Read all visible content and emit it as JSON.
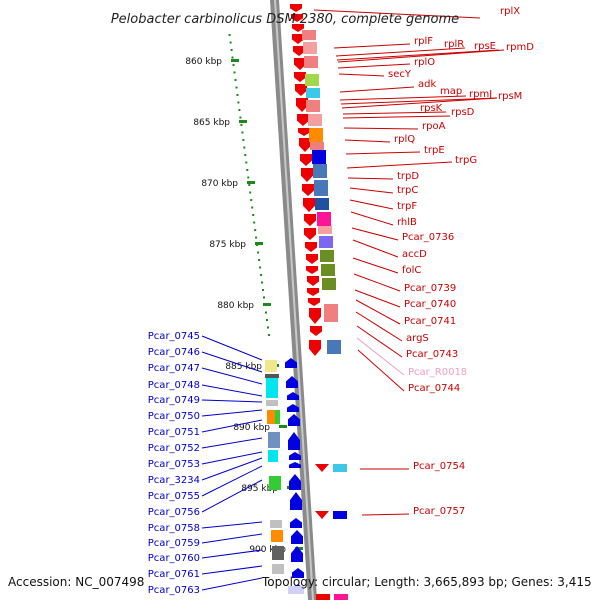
{
  "title": "Pelobacter carbinolicus DSM 2380, complete genome",
  "footer": {
    "accession": "Accession: NC_007498",
    "topology": "Topology: circular; Length: 3,665,893 bp; Genes: 3,415"
  },
  "colors": {
    "right_label": "#cc0000",
    "left_label": "#0000cc",
    "rna_label": "#f0a0c0",
    "ruler_dot": "#1a8a1a"
  },
  "ruler": [
    {
      "label": "860 kbp"
    },
    {
      "label": "865 kbp"
    },
    {
      "label": "870 kbp"
    },
    {
      "label": "875 kbp"
    },
    {
      "label": "880 kbp"
    },
    {
      "label": "885 kbp"
    },
    {
      "label": "890 kbp"
    },
    {
      "label": "895 kbp"
    },
    {
      "label": "900 kbp"
    }
  ],
  "right_genes": [
    {
      "name": "rplX",
      "color": "red"
    },
    {
      "name": "rplF",
      "color": "red"
    },
    {
      "name": "rplR",
      "color": "red"
    },
    {
      "name": "rpsE",
      "color": "red"
    },
    {
      "name": "rpmD",
      "color": "red"
    },
    {
      "name": "rplO",
      "color": "red"
    },
    {
      "name": "secY",
      "color": "red"
    },
    {
      "name": "adk",
      "color": "red"
    },
    {
      "name": "map",
      "color": "red"
    },
    {
      "name": "rpmJ",
      "color": "red"
    },
    {
      "name": "rpsM",
      "color": "red"
    },
    {
      "name": "rpsK",
      "color": "red"
    },
    {
      "name": "rpsD",
      "color": "red"
    },
    {
      "name": "rpoA",
      "color": "red"
    },
    {
      "name": "rplQ",
      "color": "red"
    },
    {
      "name": "trpE",
      "color": "red"
    },
    {
      "name": "trpG",
      "color": "red"
    },
    {
      "name": "trpD",
      "color": "red"
    },
    {
      "name": "trpC",
      "color": "red"
    },
    {
      "name": "trpF",
      "color": "red"
    },
    {
      "name": "rhlB",
      "color": "red"
    },
    {
      "name": "Pcar_0736",
      "color": "red"
    },
    {
      "name": "accD",
      "color": "red"
    },
    {
      "name": "folC",
      "color": "red"
    },
    {
      "name": "Pcar_0739",
      "color": "red"
    },
    {
      "name": "Pcar_0740",
      "color": "red"
    },
    {
      "name": "Pcar_0741",
      "color": "red"
    },
    {
      "name": "argS",
      "color": "red"
    },
    {
      "name": "Pcar_0743",
      "color": "red"
    },
    {
      "name": "Pcar_R0018",
      "color": "pink"
    },
    {
      "name": "Pcar_0744",
      "color": "red"
    },
    {
      "name": "Pcar_0754",
      "color": "red"
    },
    {
      "name": "Pcar_0757",
      "color": "red"
    }
  ],
  "left_genes": [
    "Pcar_0745",
    "Pcar_0746",
    "Pcar_0747",
    "Pcar_0748",
    "Pcar_0749",
    "Pcar_0750",
    "Pcar_0751",
    "Pcar_0752",
    "Pcar_0753",
    "Pcar_3234",
    "Pcar_0755",
    "Pcar_0756",
    "Pcar_0758",
    "Pcar_0759",
    "Pcar_0760",
    "Pcar_0761",
    "Pcar_0763"
  ]
}
